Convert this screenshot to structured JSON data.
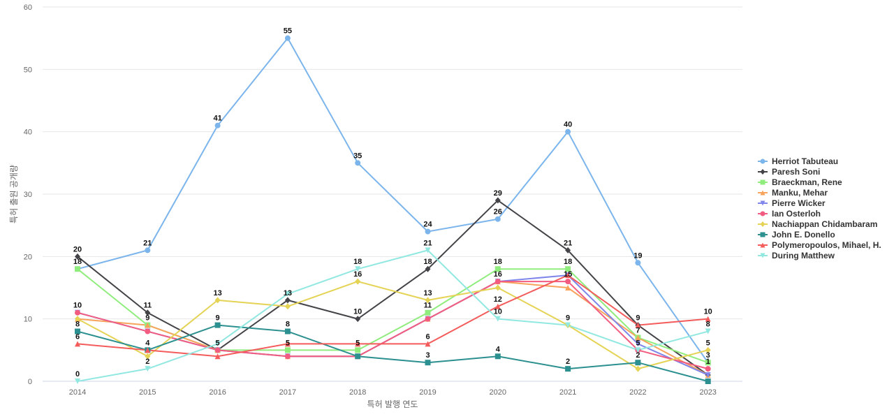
{
  "chart_data": {
    "type": "line",
    "xlabel": "특허 발행 연도",
    "ylabel": "특허 출원 공개량",
    "ylim": [
      0,
      60
    ],
    "yticks": [
      0,
      10,
      20,
      30,
      40,
      50,
      60
    ],
    "grid": true,
    "legend_position": "right",
    "categories": [
      "2014",
      "2015",
      "2016",
      "2017",
      "2018",
      "2019",
      "2020",
      "2021",
      "2022",
      "2023"
    ],
    "series": [
      {
        "name": "Herriot Tabuteau",
        "color": "#7cb5ec",
        "marker": "circle",
        "values": [
          18,
          21,
          41,
          55,
          35,
          24,
          26,
          40,
          19,
          3
        ]
      },
      {
        "name": "Paresh Soni",
        "color": "#434348",
        "marker": "diamond",
        "values": [
          20,
          11,
          5,
          13,
          10,
          18,
          29,
          21,
          9,
          1
        ]
      },
      {
        "name": "Braeckman, Rene",
        "color": "#90ed7d",
        "marker": "square",
        "values": [
          18,
          9,
          5,
          5,
          5,
          11,
          18,
          18,
          7,
          3
        ]
      },
      {
        "name": "Manku, Mehar",
        "color": "#f7a35c",
        "marker": "triangle",
        "values": [
          10,
          9,
          5,
          4,
          4,
          10,
          16,
          15,
          7,
          1
        ]
      },
      {
        "name": "Pierre Wicker",
        "color": "#8085e9",
        "marker": "triangle-down",
        "values": [
          11,
          8,
          5,
          4,
          4,
          10,
          16,
          17,
          6,
          1
        ]
      },
      {
        "name": "Ian Osterloh",
        "color": "#f15c80",
        "marker": "circle",
        "values": [
          11,
          8,
          5,
          4,
          4,
          10,
          16,
          16,
          5,
          2
        ]
      },
      {
        "name": "Nachiappan Chidambaram",
        "color": "#e4d354",
        "marker": "diamond",
        "values": [
          10,
          4,
          13,
          12,
          16,
          13,
          15,
          9,
          2,
          5
        ]
      },
      {
        "name": "John E. Donello",
        "color": "#2b908f",
        "marker": "square",
        "values": [
          8,
          5,
          9,
          8,
          4,
          3,
          4,
          2,
          3,
          0
        ]
      },
      {
        "name": "Polymeropoulos, Mihael, H.",
        "color": "#f45b5b",
        "marker": "triangle",
        "values": [
          6,
          5,
          4,
          6,
          6,
          6,
          12,
          17,
          9,
          10
        ]
      },
      {
        "name": "During Matthew",
        "color": "#91e8e1",
        "marker": "triangle-down",
        "values": [
          0,
          2,
          6,
          14,
          18,
          21,
          10,
          9,
          5,
          8
        ]
      }
    ],
    "data_labels": [
      {
        "label": "20",
        "x": "2014",
        "y": 20
      },
      {
        "label": "18",
        "x": "2014",
        "y": 18
      },
      {
        "label": "10",
        "x": "2014",
        "y": 11
      },
      {
        "label": "8",
        "x": "2014",
        "y": 8
      },
      {
        "label": "6",
        "x": "2014",
        "y": 6
      },
      {
        "label": "0",
        "x": "2014",
        "y": 0
      },
      {
        "label": "21",
        "x": "2015",
        "y": 21
      },
      {
        "label": "11",
        "x": "2015",
        "y": 11
      },
      {
        "label": "9",
        "x": "2015",
        "y": 9
      },
      {
        "label": "4",
        "x": "2015",
        "y": 5
      },
      {
        "label": "2",
        "x": "2015",
        "y": 2
      },
      {
        "label": "41",
        "x": "2016",
        "y": 41
      },
      {
        "label": "13",
        "x": "2016",
        "y": 13
      },
      {
        "label": "9",
        "x": "2016",
        "y": 9
      },
      {
        "label": "5",
        "x": "2016",
        "y": 5
      },
      {
        "label": "55",
        "x": "2017",
        "y": 55
      },
      {
        "label": "13",
        "x": "2017",
        "y": 13
      },
      {
        "label": "8",
        "x": "2017",
        "y": 8
      },
      {
        "label": "5",
        "x": "2017",
        "y": 5
      },
      {
        "label": "35",
        "x": "2018",
        "y": 35
      },
      {
        "label": "18",
        "x": "2018",
        "y": 18
      },
      {
        "label": "16",
        "x": "2018",
        "y": 16
      },
      {
        "label": "10",
        "x": "2018",
        "y": 10
      },
      {
        "label": "5",
        "x": "2018",
        "y": 5
      },
      {
        "label": "24",
        "x": "2019",
        "y": 24
      },
      {
        "label": "21",
        "x": "2019",
        "y": 21
      },
      {
        "label": "18",
        "x": "2019",
        "y": 18
      },
      {
        "label": "13",
        "x": "2019",
        "y": 13
      },
      {
        "label": "11",
        "x": "2019",
        "y": 11
      },
      {
        "label": "6",
        "x": "2019",
        "y": 6
      },
      {
        "label": "3",
        "x": "2019",
        "y": 3
      },
      {
        "label": "29",
        "x": "2020",
        "y": 29
      },
      {
        "label": "26",
        "x": "2020",
        "y": 26
      },
      {
        "label": "18",
        "x": "2020",
        "y": 18
      },
      {
        "label": "16",
        "x": "2020",
        "y": 16
      },
      {
        "label": "12",
        "x": "2020",
        "y": 12
      },
      {
        "label": "10",
        "x": "2020",
        "y": 10
      },
      {
        "label": "4",
        "x": "2020",
        "y": 4
      },
      {
        "label": "40",
        "x": "2021",
        "y": 40
      },
      {
        "label": "21",
        "x": "2021",
        "y": 21
      },
      {
        "label": "18",
        "x": "2021",
        "y": 18
      },
      {
        "label": "15",
        "x": "2021",
        "y": 16
      },
      {
        "label": "9",
        "x": "2021",
        "y": 9
      },
      {
        "label": "2",
        "x": "2021",
        "y": 2
      },
      {
        "label": "19",
        "x": "2022",
        "y": 19
      },
      {
        "label": "9",
        "x": "2022",
        "y": 9
      },
      {
        "label": "7",
        "x": "2022",
        "y": 7
      },
      {
        "label": "5",
        "x": "2022",
        "y": 5
      },
      {
        "label": "2",
        "x": "2022",
        "y": 3
      },
      {
        "label": "10",
        "x": "2023",
        "y": 10
      },
      {
        "label": "8",
        "x": "2023",
        "y": 8
      },
      {
        "label": "5",
        "x": "2023",
        "y": 5
      },
      {
        "label": "3",
        "x": "2023",
        "y": 3
      },
      {
        "label": "1",
        "x": "2023",
        "y": 2
      }
    ]
  }
}
